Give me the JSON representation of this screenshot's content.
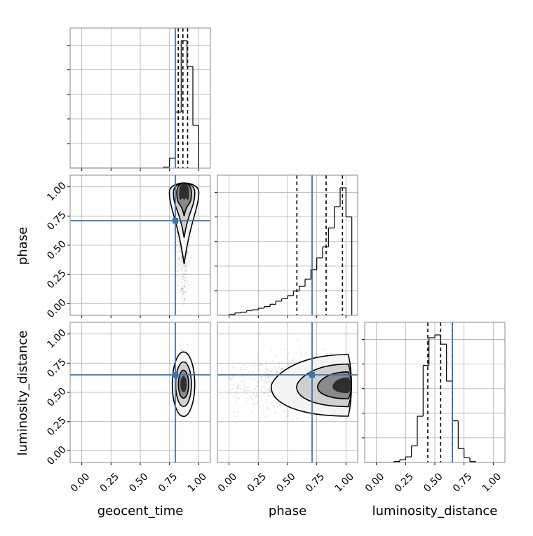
{
  "chart_data": {
    "type": "corner",
    "parameters": [
      "geocent_time",
      "phase",
      "luminosity_distance"
    ],
    "axis_labels": {
      "x": [
        "geocent_time",
        "phase",
        "luminosity_distance"
      ],
      "y": [
        "",
        "phase",
        "luminosity_distance"
      ]
    },
    "xlim": [
      -0.1,
      1.1
    ],
    "ylim": [
      -0.1,
      1.1
    ],
    "ticks": [
      0.0,
      0.25,
      0.5,
      0.75,
      1.0
    ],
    "tick_labels": [
      "0.00",
      "0.25",
      "0.50",
      "0.75",
      "1.00"
    ],
    "grid": true,
    "colors": {
      "truth": "#3a75b0",
      "contour": "#000000",
      "scatter": "#444444",
      "frame": "#888888"
    },
    "truths": {
      "geocent_time": 0.8,
      "phase": 0.71,
      "luminosity_distance": 0.65
    },
    "quantiles": {
      "geocent_time": [
        0.825,
        0.865,
        0.905
      ],
      "phase": [
        0.58,
        0.83,
        0.97
      ],
      "luminosity_distance": [
        0.44,
        0.55,
        0.65
      ]
    },
    "histograms": {
      "geocent_time": {
        "edges": [
          0.7,
          0.75,
          0.8,
          0.85,
          0.9,
          0.95,
          1.0
        ],
        "counts": [
          2,
          18,
          102,
          232,
          185,
          78
        ]
      },
      "phase": {
        "edges": [
          0.0,
          0.05,
          0.1,
          0.15,
          0.2,
          0.25,
          0.3,
          0.35,
          0.4,
          0.45,
          0.5,
          0.55,
          0.6,
          0.65,
          0.7,
          0.75,
          0.8,
          0.85,
          0.9,
          0.95,
          1.0,
          1.05
        ],
        "counts": [
          1,
          3,
          4,
          6,
          7,
          9,
          11,
          14,
          18,
          21,
          25,
          31,
          37,
          46,
          58,
          73,
          87,
          111,
          138,
          162,
          125
        ]
      },
      "luminosity_distance": {
        "edges": [
          0.15,
          0.2,
          0.25,
          0.3,
          0.35,
          0.4,
          0.45,
          0.5,
          0.55,
          0.6,
          0.65,
          0.7,
          0.75,
          0.8,
          0.85
        ],
        "counts": [
          1,
          3,
          6,
          18,
          50,
          105,
          135,
          138,
          128,
          88,
          45,
          15,
          5,
          1
        ]
      }
    },
    "joint": {
      "phase_vs_geocent_time": {
        "center": [
          0.87,
          0.85
        ],
        "spread": [
          0.025,
          0.2
        ]
      },
      "luminosity_distance_vs_geocent_time": {
        "center": [
          0.87,
          0.58
        ],
        "spread": [
          0.025,
          0.1
        ]
      },
      "luminosity_distance_vs_phase": {
        "center": [
          0.85,
          0.56
        ],
        "spread": [
          0.15,
          0.11
        ]
      }
    }
  }
}
